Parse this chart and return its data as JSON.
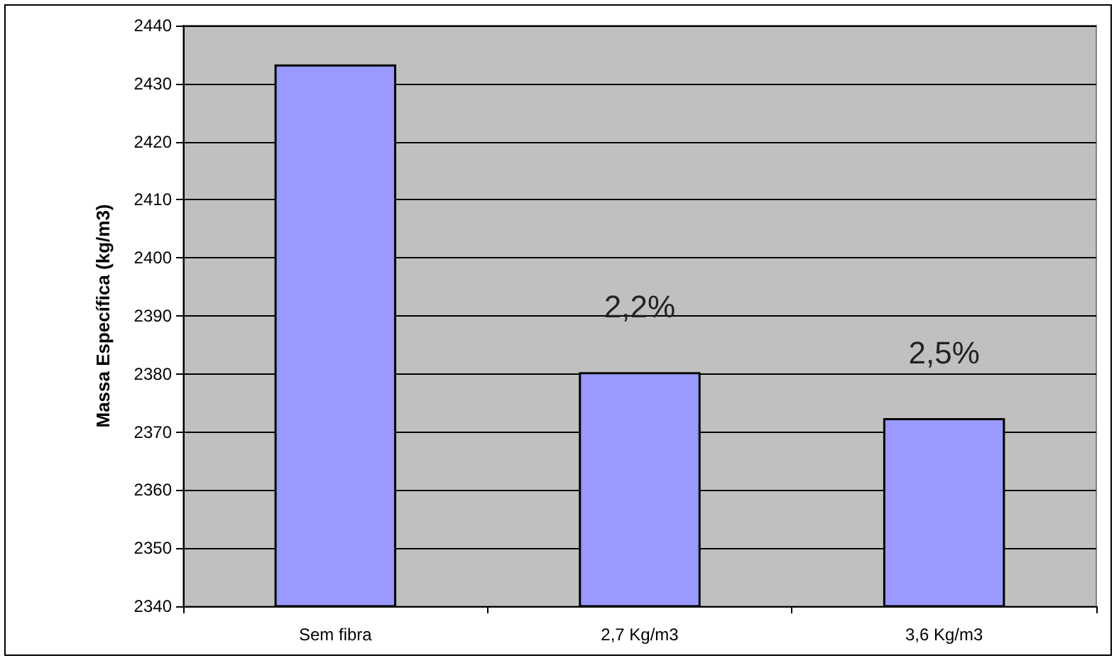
{
  "chart_data": {
    "type": "bar",
    "ylabel": "Massa Específica (kg/m3)",
    "categories": [
      "Sem fibra",
      "2,7 Kg/m3",
      "3,6 Kg/m3"
    ],
    "values": [
      2433.3,
      2380.3,
      2372.4
    ],
    "color": "#9999ff",
    "ylim": [
      2340,
      2440
    ],
    "yticks": [
      2340,
      2350,
      2360,
      2370,
      2380,
      2390,
      2400,
      2410,
      2420,
      2430,
      2440
    ],
    "grid": "y",
    "annotations": [
      "2,2%",
      "2,5%"
    ]
  }
}
